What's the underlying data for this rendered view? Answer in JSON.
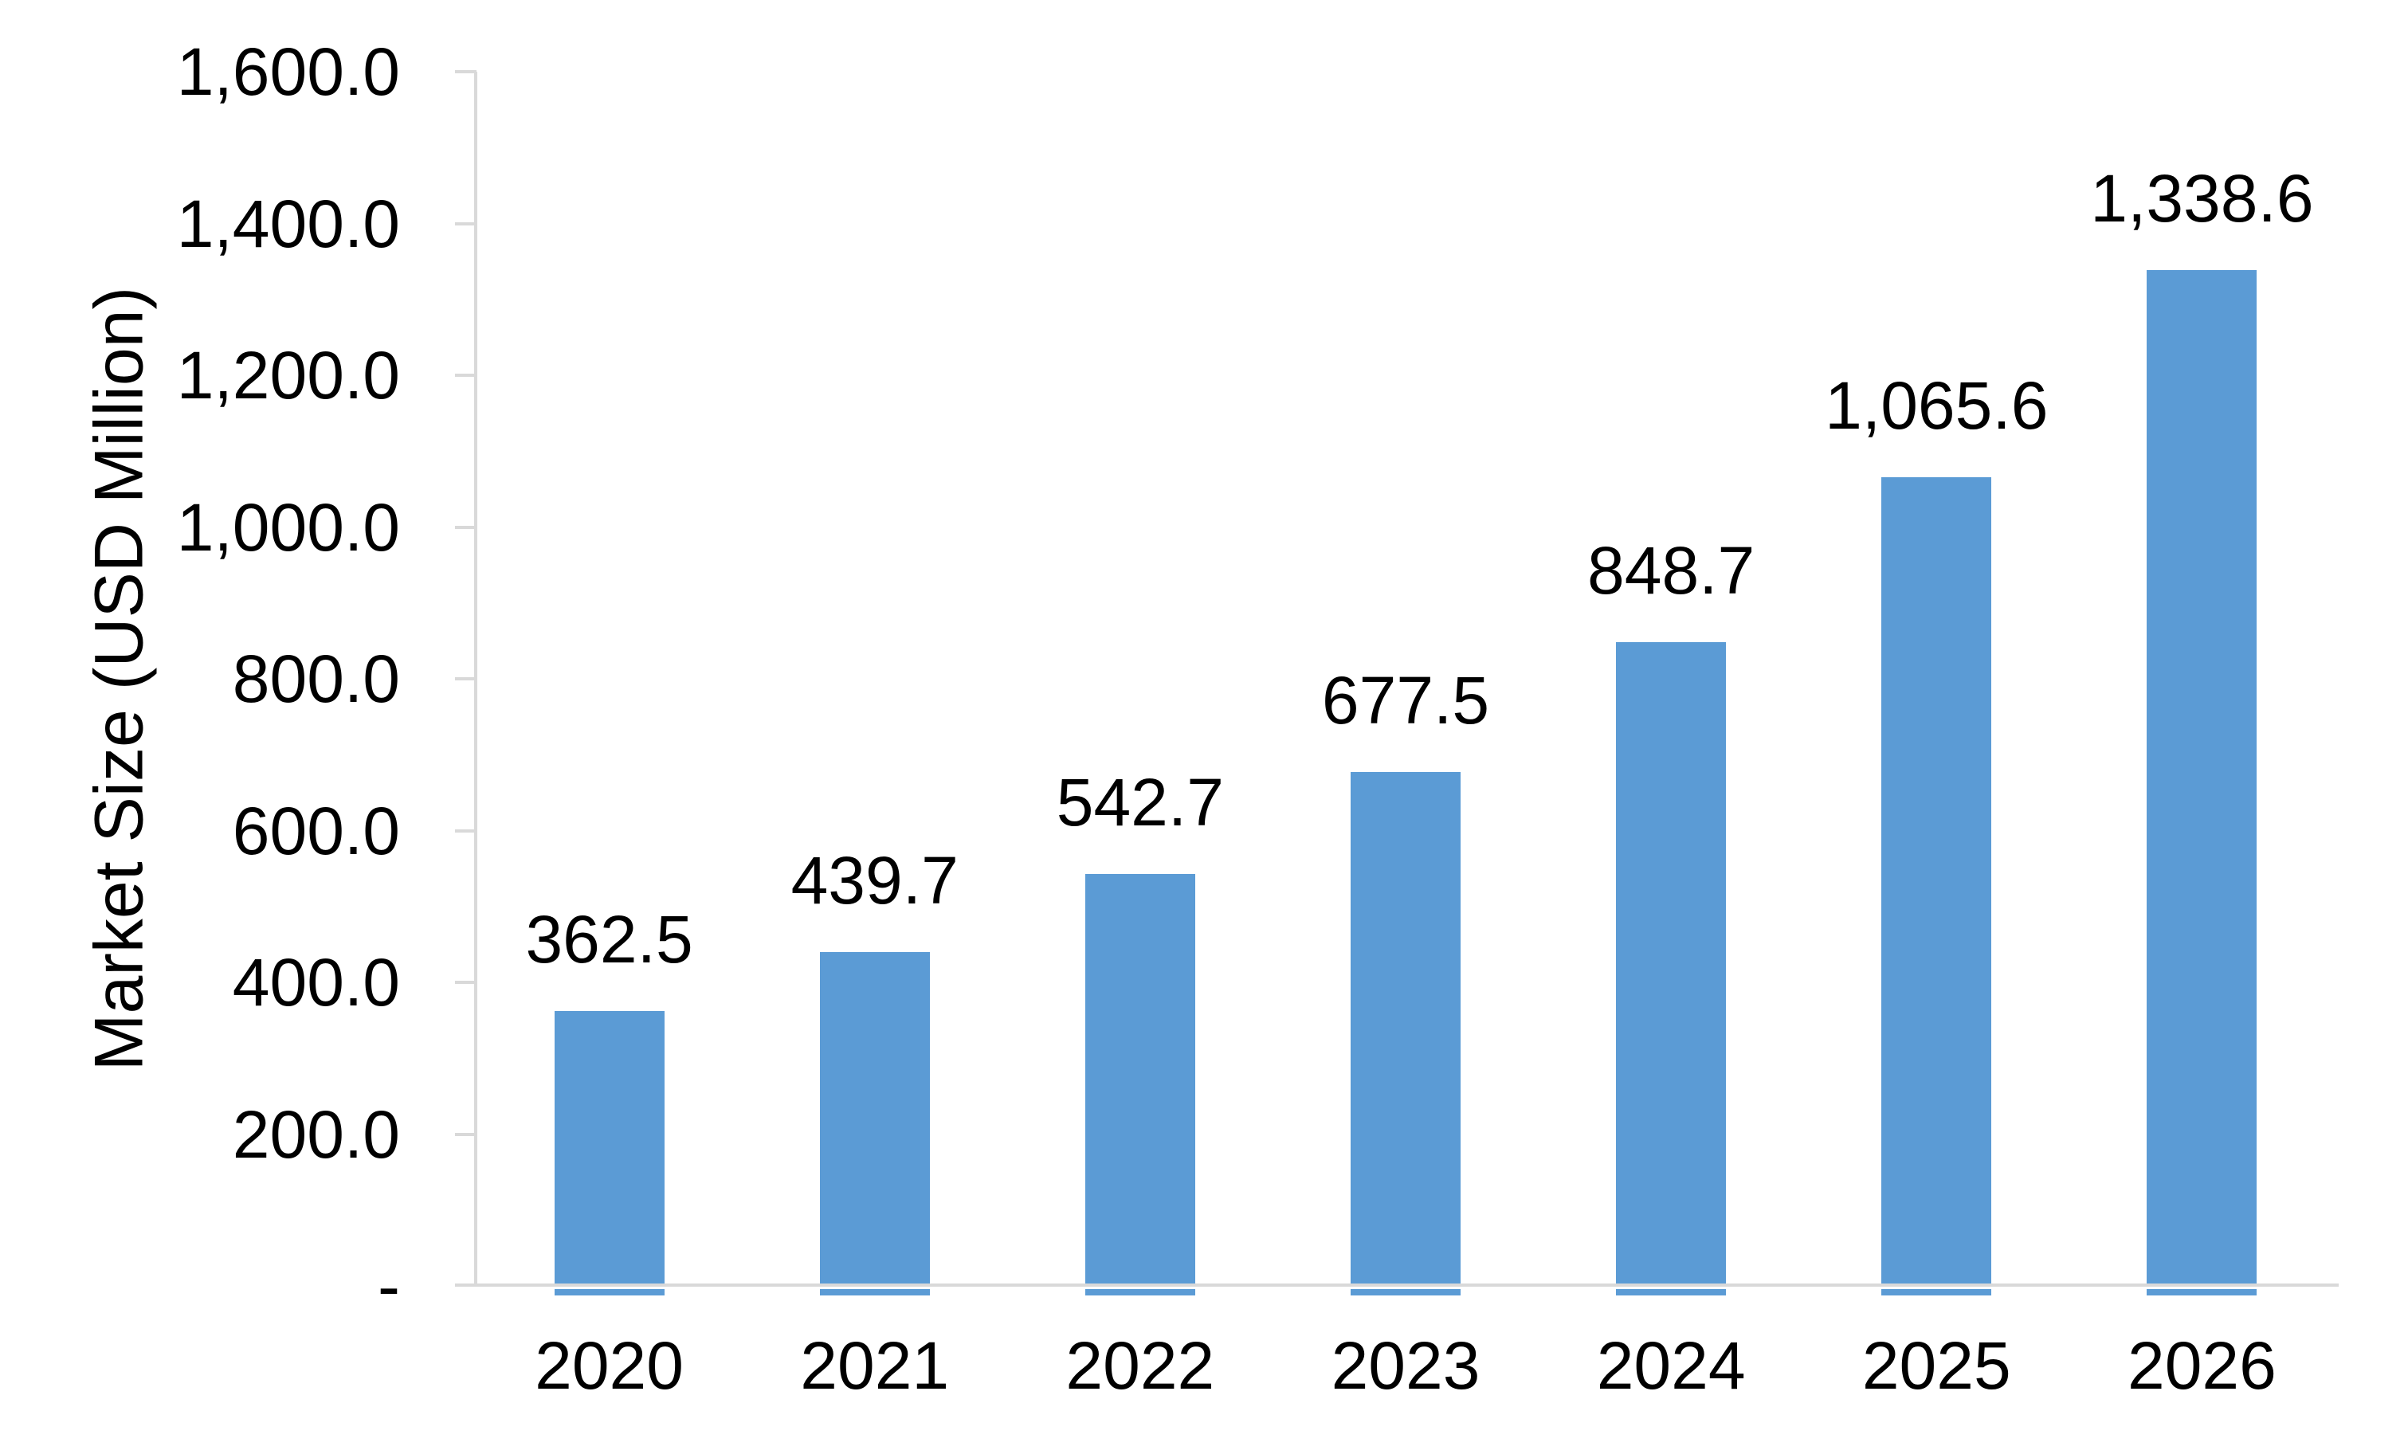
{
  "chart_data": {
    "type": "bar",
    "title": "",
    "categories": [
      "2020",
      "2021",
      "2022",
      "2023",
      "2024",
      "2025",
      "2026"
    ],
    "series": [
      {
        "name": "Market Size",
        "values": [
          362.5,
          439.7,
          542.7,
          677.5,
          848.7,
          1065.6,
          1338.6
        ]
      }
    ],
    "data_labels": [
      "362.5",
      "439.7",
      "542.7",
      "677.5",
      "848.7",
      "1,065.6",
      "1,338.6"
    ],
    "xlabel": "",
    "ylabel": "Market Size (USD Million)",
    "ylim": [
      0,
      1600
    ],
    "y_ticks": [
      {
        "value": 1600,
        "label": "1,600.0"
      },
      {
        "value": 1400,
        "label": "1,400.0"
      },
      {
        "value": 1200,
        "label": "1,200.0"
      },
      {
        "value": 1000,
        "label": "1,000.0"
      },
      {
        "value": 800,
        "label": "800.0"
      },
      {
        "value": 600,
        "label": "600.0"
      },
      {
        "value": 400,
        "label": "400.0"
      },
      {
        "value": 200,
        "label": "200.0"
      },
      {
        "value": 0,
        "label": "-"
      }
    ],
    "legend_position": "none",
    "grid": "off",
    "colors": {
      "bar": "#5B9BD5",
      "axis": "#D9D9D9",
      "text": "#000000",
      "background": "#FFFFFF"
    }
  }
}
